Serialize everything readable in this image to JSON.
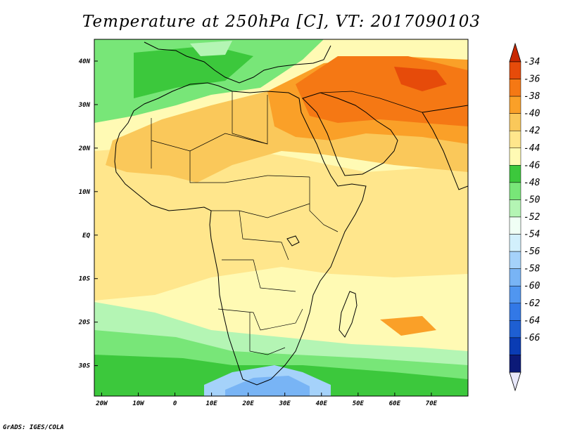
{
  "title": "Temperature at 250hPa [C], VT: 2017090103",
  "footer": "GrADS: IGES/COLA",
  "map": {
    "lon_range": [
      -22,
      80
    ],
    "lat_range": [
      -37,
      45
    ],
    "lon_ticks": [
      "20W",
      "10W",
      "0",
      "10E",
      "20E",
      "30E",
      "40E",
      "50E",
      "60E",
      "70E"
    ],
    "lat_ticks": [
      "40N",
      "30N",
      "20N",
      "10N",
      "EQ",
      "10S",
      "20S",
      "30S"
    ]
  },
  "colorbar": {
    "colors": [
      "#e8e8fa",
      "#0c1a78",
      "#0a3cb4",
      "#1e5fd2",
      "#3278e6",
      "#5096f0",
      "#78b4f5",
      "#a5d2fa",
      "#d2f0fc",
      "#f0fff5",
      "#b4f5b4",
      "#78e678",
      "#3cc83c",
      "#fffab4",
      "#ffe68c",
      "#fac85a",
      "#faa028",
      "#f57814",
      "#e64b0a",
      "#c82800"
    ],
    "labels": [
      "-66",
      "-64",
      "-62",
      "-60",
      "-58",
      "-56",
      "-54",
      "-52",
      "-50",
      "-48",
      "-46",
      "-44",
      "-42",
      "-40",
      "-38",
      "-36",
      "-34"
    ]
  }
}
